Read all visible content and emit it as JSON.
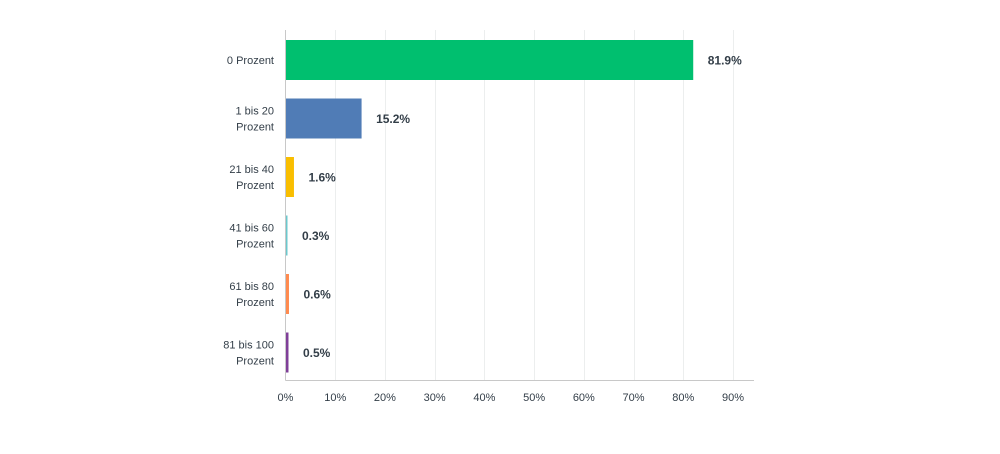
{
  "chart_data": {
    "type": "bar",
    "orientation": "horizontal",
    "categories": [
      [
        "0 Prozent"
      ],
      [
        "1 bis 20",
        "Prozent"
      ],
      [
        "21 bis 40",
        "Prozent"
      ],
      [
        "41 bis 60",
        "Prozent"
      ],
      [
        "61 bis 80",
        "Prozent"
      ],
      [
        "81 bis 100",
        "Prozent"
      ]
    ],
    "values": [
      81.9,
      15.2,
      1.6,
      0.3,
      0.6,
      0.5
    ],
    "value_labels": [
      "81.9%",
      "15.2%",
      "1.6%",
      "0.3%",
      "0.6%",
      "0.5%"
    ],
    "colors": [
      "#00bf6f",
      "#507cb6",
      "#f9be00",
      "#6bc8cd",
      "#ff8b4f",
      "#7f3f98"
    ],
    "x_ticks": [
      0,
      10,
      20,
      30,
      40,
      50,
      60,
      70,
      80,
      90
    ],
    "x_tick_labels": [
      "0%",
      "10%",
      "20%",
      "30%",
      "40%",
      "50%",
      "60%",
      "70%",
      "80%",
      "90%"
    ],
    "xlim": [
      0,
      95
    ],
    "grid": true,
    "title": "",
    "xlabel": "",
    "ylabel": ""
  }
}
